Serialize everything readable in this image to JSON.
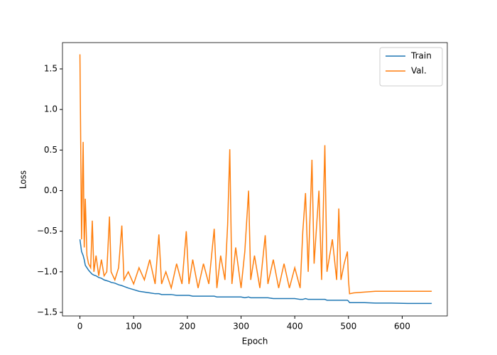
{
  "chart_data": {
    "type": "line",
    "x_label": "Epoch",
    "y_label": "Loss",
    "x": [
      0,
      3,
      6,
      8,
      10,
      13,
      16,
      20,
      23,
      26,
      30,
      35,
      40,
      45,
      50,
      55,
      58,
      65,
      72,
      78,
      82,
      90,
      100,
      110,
      120,
      130,
      140,
      147,
      152,
      160,
      170,
      180,
      190,
      198,
      203,
      210,
      220,
      230,
      240,
      250,
      255,
      262,
      270,
      275,
      279,
      283,
      290,
      300,
      307,
      314,
      318,
      325,
      335,
      345,
      350,
      360,
      370,
      380,
      390,
      400,
      410,
      415,
      420,
      425,
      432,
      436,
      445,
      450,
      456,
      460,
      470,
      478,
      482,
      486,
      492,
      498,
      500,
      502,
      510,
      530,
      550,
      580,
      610,
      655
    ],
    "series": [
      {
        "name": "Train",
        "color": "#1f77b4",
        "values": [
          -0.6,
          -0.75,
          -0.8,
          -0.85,
          -0.92,
          -0.95,
          -0.98,
          -1.01,
          -1.03,
          -1.04,
          -1.05,
          -1.07,
          -1.08,
          -1.1,
          -1.11,
          -1.12,
          -1.13,
          -1.14,
          -1.16,
          -1.17,
          -1.18,
          -1.2,
          -1.22,
          -1.24,
          -1.25,
          -1.26,
          -1.27,
          -1.27,
          -1.28,
          -1.28,
          -1.28,
          -1.29,
          -1.29,
          -1.29,
          -1.29,
          -1.3,
          -1.3,
          -1.3,
          -1.3,
          -1.3,
          -1.31,
          -1.31,
          -1.31,
          -1.31,
          -1.31,
          -1.31,
          -1.31,
          -1.31,
          -1.32,
          -1.31,
          -1.32,
          -1.32,
          -1.32,
          -1.32,
          -1.32,
          -1.33,
          -1.33,
          -1.33,
          -1.33,
          -1.33,
          -1.34,
          -1.34,
          -1.33,
          -1.34,
          -1.34,
          -1.34,
          -1.34,
          -1.34,
          -1.34,
          -1.35,
          -1.35,
          -1.35,
          -1.35,
          -1.35,
          -1.35,
          -1.35,
          -1.36,
          -1.38,
          -1.38,
          -1.38,
          -1.385,
          -1.385,
          -1.39,
          -1.39
        ]
      },
      {
        "name": "Val.",
        "color": "#ff7f0e",
        "values": [
          1.68,
          -0.6,
          0.6,
          -0.7,
          -0.1,
          -0.8,
          -0.9,
          -0.95,
          -0.37,
          -1.0,
          -0.8,
          -1.05,
          -0.85,
          -1.05,
          -1.0,
          -0.32,
          -1.0,
          -1.1,
          -0.95,
          -0.43,
          -1.1,
          -1.0,
          -1.15,
          -0.95,
          -1.1,
          -0.85,
          -1.15,
          -0.54,
          -1.15,
          -1.0,
          -1.2,
          -0.9,
          -1.15,
          -0.5,
          -1.15,
          -0.85,
          -1.2,
          -0.9,
          -1.15,
          -0.47,
          -1.2,
          -0.8,
          -1.1,
          -0.42,
          0.51,
          -1.15,
          -0.7,
          -1.2,
          -0.75,
          0.0,
          -1.1,
          -0.8,
          -1.2,
          -0.55,
          -1.15,
          -0.85,
          -1.2,
          -0.9,
          -1.2,
          -0.95,
          -1.2,
          -0.5,
          -0.03,
          -1.0,
          0.38,
          -0.9,
          0.0,
          -1.1,
          0.56,
          -1.0,
          -0.6,
          -1.1,
          -0.22,
          -1.1,
          -0.9,
          -0.75,
          -1.1,
          -1.27,
          -1.26,
          -1.25,
          -1.24,
          -1.24,
          -1.24,
          -1.24
        ]
      }
    ],
    "xlim": [
      -32.5,
      684
    ],
    "ylim": [
      -1.544,
      1.824
    ],
    "xticks": [
      0,
      100,
      200,
      300,
      400,
      500,
      600
    ],
    "yticks": [
      {
        "value": -1.5,
        "label": "−1.5"
      },
      {
        "value": -1.0,
        "label": "−1.0"
      },
      {
        "value": -0.5,
        "label": "−0.5"
      },
      {
        "value": 0,
        "label": "0.0"
      },
      {
        "value": 0.5,
        "label": "0.5"
      },
      {
        "value": 1.0,
        "label": "1.0"
      },
      {
        "value": 1.5,
        "label": "1.5"
      }
    ],
    "legend": "upper right"
  }
}
